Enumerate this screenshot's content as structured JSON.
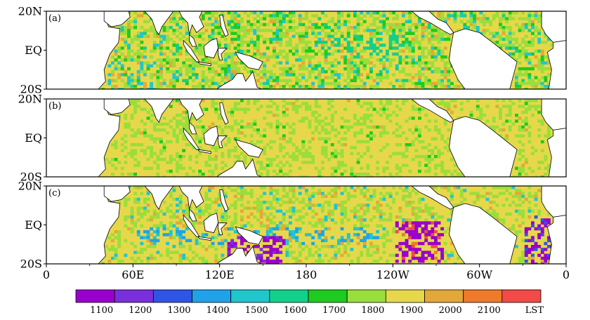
{
  "panels": [
    {
      "tag": "(a)",
      "lat_labels": [
        "20N",
        "EQ",
        "20S"
      ]
    },
    {
      "tag": "(b)",
      "lat_labels": [
        "20N",
        "EQ",
        "20S"
      ]
    },
    {
      "tag": "(c)",
      "lat_labels": [
        "20N",
        "EQ",
        "20S"
      ]
    }
  ],
  "lon_labels": [
    "0",
    "60E",
    "120E",
    "180",
    "120W",
    "60W",
    "0"
  ],
  "colorbar": {
    "labels": [
      "1100",
      "1200",
      "1300",
      "1400",
      "1500",
      "1600",
      "1700",
      "1800",
      "1900",
      "2000",
      "2100"
    ],
    "unit": "LST",
    "colors": [
      "#9a00cc",
      "#7a2fdc",
      "#2f55e6",
      "#1fa2ea",
      "#20c6cc",
      "#12d089",
      "#1ecb1e",
      "#9ade3c",
      "#e6d84a",
      "#e3a83a",
      "#ee7a2a",
      "#f24a46"
    ]
  },
  "map": {
    "land_color": "#ffffff",
    "coast_color": "#000000",
    "dominant_colors": {
      "a": [
        "#9ade3c",
        "#e6d84a",
        "#1ecb1e",
        "#20c6cc"
      ],
      "b": [
        "#e6d84a",
        "#9ade3c"
      ],
      "c": [
        "#e6d84a",
        "#9ade3c",
        "#9a00cc",
        "#20c6cc",
        "#1fa2ea"
      ]
    }
  }
}
